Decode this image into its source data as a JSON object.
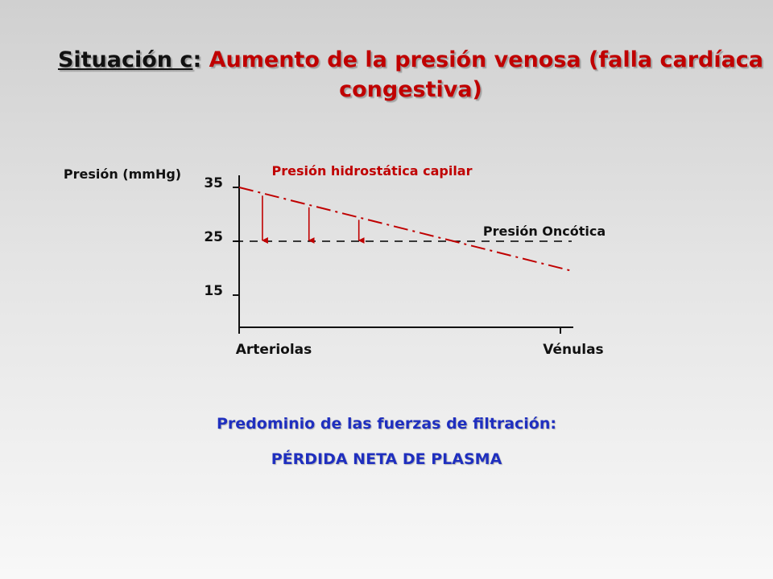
{
  "title": {
    "label": "Situación c",
    "separator": ":",
    "main": " Aumento de la presión venosa (falla cardíaca congestiva)"
  },
  "chart_data": {
    "type": "line",
    "ylabel": "Presión (mmHg)",
    "yticks": [
      35,
      25,
      15
    ],
    "ylim": [
      8,
      37
    ],
    "categories": [
      "Arteriolas",
      "Vénulas"
    ],
    "grid": false,
    "series": [
      {
        "name": "Presión hidrostática capilar",
        "x": [
          0,
          1
        ],
        "values": [
          35,
          19.5
        ],
        "color": "#c00000",
        "style": "dash-dot"
      },
      {
        "name": "Presión Oncótica",
        "x": [
          0,
          1
        ],
        "values": [
          25,
          25
        ],
        "color": "#000000",
        "style": "dashed"
      }
    ],
    "arrows_at_x": [
      0.07,
      0.21,
      0.36
    ]
  },
  "footer": {
    "line1": "Predominio de las fuerzas de filtración:",
    "line2": "PÉRDIDA NETA DE PLASMA"
  },
  "colors": {
    "accent_red": "#c00000",
    "accent_blue": "#1f2fbf",
    "text": "#111111"
  }
}
